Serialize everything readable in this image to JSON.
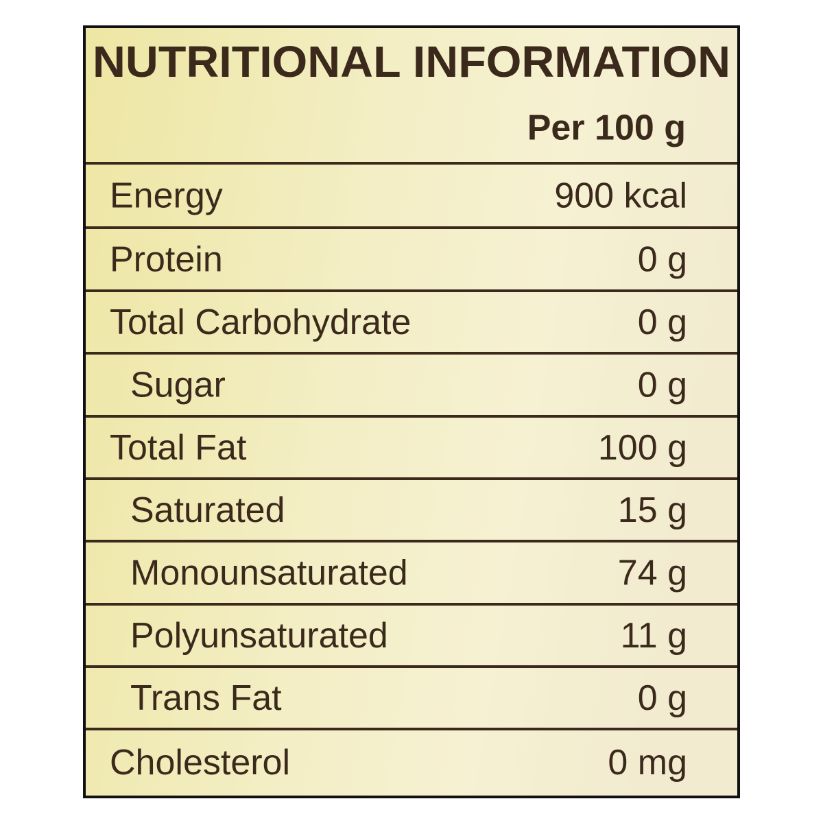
{
  "header": {
    "title": "NUTRITIONAL INFORMATION",
    "subtitle": "Per 100 g"
  },
  "table": {
    "rows": [
      [
        "Energy",
        "900 kcal"
      ],
      [
        "Protein",
        "0 g"
      ],
      [
        "Total Carbohydrate",
        "0 g"
      ],
      [
        "Sugar",
        "0 g"
      ],
      [
        "Total Fat",
        "100 g"
      ],
      [
        "Saturated",
        "15 g"
      ],
      [
        "Monounsaturated",
        "74 g"
      ],
      [
        "Polyunsaturated",
        "11 g"
      ],
      [
        "Trans Fat",
        "0 g"
      ],
      [
        "Cholesterol",
        "0 mg"
      ]
    ]
  }
}
